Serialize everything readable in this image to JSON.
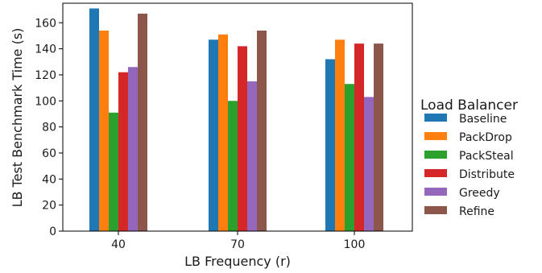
{
  "chart_data": {
    "type": "bar",
    "title": "",
    "xlabel": "LB Frequency (r)",
    "ylabel": "LB Test Benchmark Time (s)",
    "categories": [
      "40",
      "70",
      "100"
    ],
    "ylim": [
      0,
      175
    ],
    "yticks": [
      0,
      20,
      40,
      60,
      80,
      100,
      120,
      140,
      160
    ],
    "grid": false,
    "legend": {
      "title": "Load Balancer",
      "placement": "right"
    },
    "series": [
      {
        "name": "Baseline",
        "color": "#1f77b4",
        "values": [
          171,
          147,
          132
        ]
      },
      {
        "name": "PackDrop",
        "color": "#ff7f0e",
        "values": [
          154,
          151,
          147
        ]
      },
      {
        "name": "PackSteal",
        "color": "#2ca02c",
        "values": [
          91,
          100,
          113
        ]
      },
      {
        "name": "Distribute",
        "color": "#d62728",
        "values": [
          122,
          142,
          144
        ]
      },
      {
        "name": "Greedy",
        "color": "#9467bd",
        "values": [
          126,
          115,
          103
        ]
      },
      {
        "name": "Refine",
        "color": "#8c564b",
        "values": [
          167,
          154,
          144
        ]
      }
    ]
  }
}
